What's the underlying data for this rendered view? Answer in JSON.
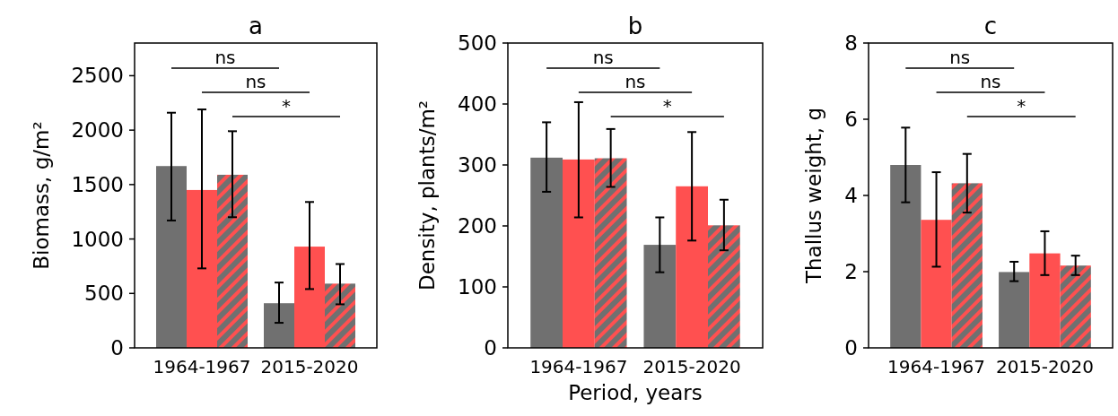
{
  "chart_data": [
    {
      "type": "bar",
      "title": "a",
      "ylabel": "Biomass, g/m²",
      "categories": [
        "1964-1967",
        "2015-2020"
      ],
      "ylim": [
        0,
        2800
      ],
      "yticks": [
        0,
        500,
        1000,
        1500,
        2000,
        2500
      ],
      "grid": false,
      "annotations": [
        "ns",
        "ns",
        "*"
      ],
      "series": [
        {
          "color": "#707070",
          "values": [
            1670,
            410
          ],
          "errors": [
            [
              1170,
              2160
            ],
            [
              230,
              600
            ]
          ]
        },
        {
          "color": "#ff5050",
          "values": [
            1450,
            930
          ],
          "errors": [
            [
              730,
              2190
            ],
            [
              540,
              1340
            ]
          ]
        },
        {
          "color": "#ff5050",
          "values": [
            1590,
            590
          ],
          "errors": [
            [
              1200,
              1990
            ],
            [
              400,
              770
            ]
          ]
        }
      ]
    },
    {
      "type": "bar",
      "title": "b",
      "ylabel": "Density, plants/m²",
      "xlabel": "Period, years",
      "categories": [
        "1964-1967",
        "2015-2020"
      ],
      "ylim": [
        0,
        500
      ],
      "yticks": [
        0,
        100,
        200,
        300,
        400,
        500
      ],
      "grid": false,
      "annotations": [
        "ns",
        "ns",
        "*"
      ],
      "series": [
        {
          "color": "#707070",
          "values": [
            312,
            169
          ],
          "errors": [
            [
              256,
              370
            ],
            [
              124,
              214
            ]
          ]
        },
        {
          "color": "#ff5050",
          "values": [
            309,
            265
          ],
          "errors": [
            [
              214,
              403
            ],
            [
              176,
              354
            ]
          ]
        },
        {
          "color": "#ff5050",
          "values": [
            311,
            201
          ],
          "errors": [
            [
              264,
              359
            ],
            [
              160,
              243
            ]
          ]
        }
      ]
    },
    {
      "type": "bar",
      "title": "c",
      "ylabel": "Thallus weight, g",
      "categories": [
        "1964-1967",
        "2015-2020"
      ],
      "ylim": [
        0,
        8
      ],
      "yticks": [
        0,
        2,
        4,
        6,
        8
      ],
      "grid": false,
      "annotations": [
        "ns",
        "ns",
        "*"
      ],
      "series": [
        {
          "color": "#707070",
          "values": [
            4.8,
            1.99
          ],
          "errors": [
            [
              3.82,
              5.78
            ],
            [
              1.75,
              2.26
            ]
          ]
        },
        {
          "color": "#ff5050",
          "values": [
            3.36,
            2.48
          ],
          "errors": [
            [
              2.13,
              4.61
            ],
            [
              1.91,
              3.06
            ]
          ]
        },
        {
          "color": "#ff5050",
          "values": [
            4.32,
            2.16
          ],
          "errors": [
            [
              3.55,
              5.09
            ],
            [
              1.91,
              2.42
            ]
          ]
        }
      ]
    }
  ]
}
